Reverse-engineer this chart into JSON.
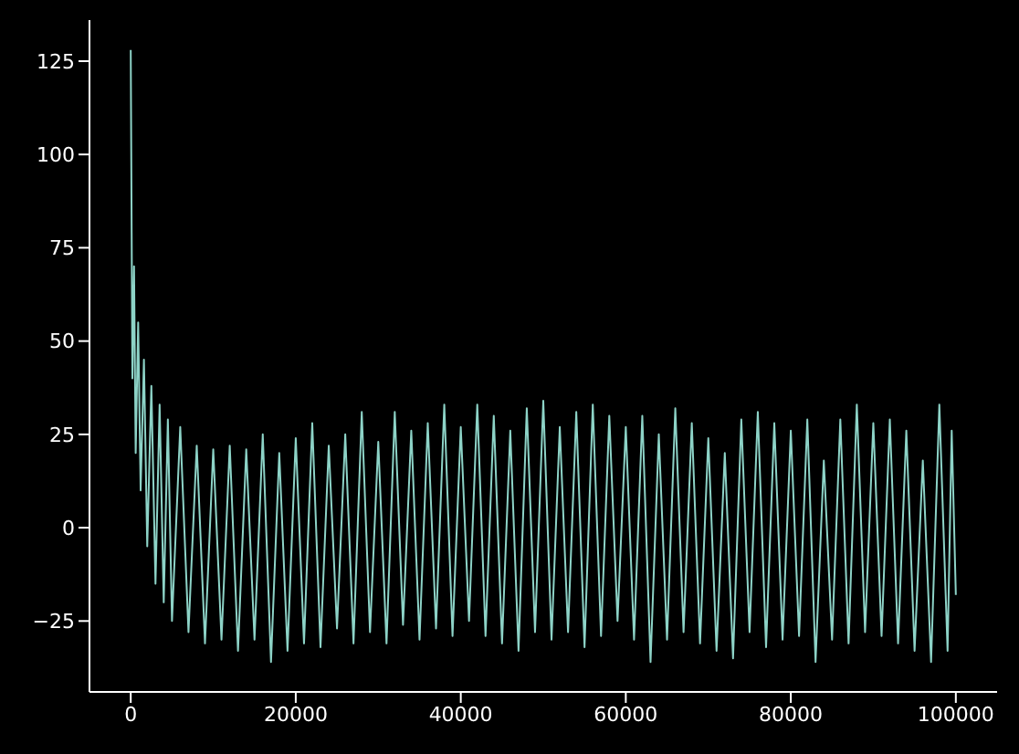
{
  "chart_data": {
    "type": "line",
    "color": "#8dd3c7",
    "x": [
      0,
      200,
      400,
      600,
      900,
      1200,
      1600,
      2000,
      2500,
      3000,
      3500,
      4000,
      4500,
      5000,
      6000,
      7000,
      8000,
      9000,
      10000,
      11000,
      12000,
      13000,
      14000,
      15000,
      16000,
      17000,
      18000,
      19000,
      20000,
      21000,
      22000,
      23000,
      24000,
      25000,
      26000,
      27000,
      28000,
      29000,
      30000,
      31000,
      32000,
      33000,
      34000,
      35000,
      36000,
      37000,
      38000,
      39000,
      40000,
      41000,
      42000,
      43000,
      44000,
      45000,
      46000,
      47000,
      48000,
      49000,
      50000,
      51000,
      52000,
      53000,
      54000,
      55000,
      56000,
      57000,
      58000,
      59000,
      60000,
      61000,
      62000,
      63000,
      64000,
      65000,
      66000,
      67000,
      68000,
      69000,
      70000,
      71000,
      72000,
      73000,
      74000,
      75000,
      76000,
      77000,
      78000,
      79000,
      80000,
      81000,
      82000,
      83000,
      84000,
      85000,
      86000,
      87000,
      88000,
      89000,
      90000,
      91000,
      92000,
      93000,
      94000,
      95000,
      96000,
      97000,
      98000,
      99000,
      99500,
      100000
    ],
    "values": [
      128,
      40,
      70,
      20,
      55,
      10,
      45,
      -5,
      38,
      -15,
      33,
      -20,
      29,
      -25,
      27,
      -28,
      22,
      -31,
      21,
      -30,
      22,
      -33,
      21,
      -30,
      25,
      -36,
      20,
      -33,
      24,
      -31,
      28,
      -32,
      22,
      -27,
      25,
      -31,
      31,
      -28,
      23,
      -31,
      31,
      -26,
      26,
      -30,
      28,
      -27,
      33,
      -29,
      27,
      -25,
      33,
      -29,
      30,
      -31,
      26,
      -33,
      32,
      -28,
      34,
      -30,
      27,
      -28,
      31,
      -32,
      33,
      -29,
      30,
      -25,
      27,
      -30,
      30,
      -36,
      25,
      -30,
      32,
      -28,
      28,
      -31,
      24,
      -33,
      20,
      -35,
      29,
      -28,
      31,
      -32,
      28,
      -30,
      26,
      -29,
      29,
      -36,
      18,
      -30,
      29,
      -31,
      33,
      -28,
      28,
      -29,
      29,
      -31,
      26,
      -33,
      18,
      -36,
      33,
      -33,
      26,
      -18
    ],
    "xlim": [
      -5000,
      105000
    ],
    "ylim": [
      -44,
      136
    ],
    "xticks": [
      0,
      20000,
      40000,
      60000,
      80000,
      100000
    ],
    "yticks": [
      -25,
      0,
      25,
      50,
      75,
      100,
      125
    ]
  }
}
